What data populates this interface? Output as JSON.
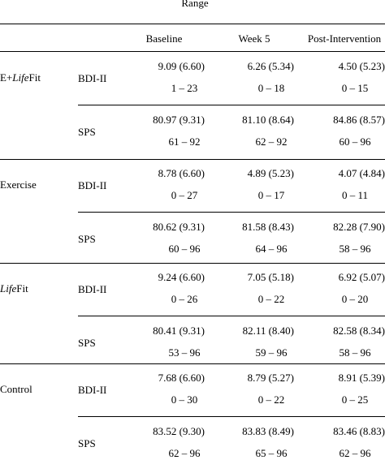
{
  "header": {
    "top": "Range",
    "columns": [
      "Baseline",
      "Week 5",
      "Post-Intervention"
    ]
  },
  "groups": [
    {
      "name_prefix": "E+",
      "name_italic": "Life",
      "name_suffix": "Fit",
      "rows": [
        {
          "measure": "BDI-II",
          "mean_sd": [
            "9.09 (6.60)",
            "6.26 (5.34)",
            "4.50 (5.23)"
          ],
          "range": [
            "1 – 23",
            "0 – 18",
            "0 – 15"
          ]
        },
        {
          "measure": "SPS",
          "mean_sd": [
            "80.97 (9.31)",
            "81.10 (8.64)",
            "84.86 (8.57)"
          ],
          "range": [
            "61 – 92",
            "62 – 92",
            "60 – 96"
          ]
        }
      ]
    },
    {
      "name_prefix": "Exercise",
      "name_italic": "",
      "name_suffix": "",
      "rows": [
        {
          "measure": "BDI-II",
          "mean_sd": [
            "8.78 (6.60)",
            "4.89 (5.23)",
            "4.07 (4.84)"
          ],
          "range": [
            "0 – 27",
            "0 – 17",
            "0 – 11"
          ]
        },
        {
          "measure": "SPS",
          "mean_sd": [
            "80.62 (9.31)",
            "81.58 (8.43)",
            "82.28 (7.90)"
          ],
          "range": [
            "60 – 96",
            "64 – 96",
            "58 – 96"
          ]
        }
      ]
    },
    {
      "name_prefix": "",
      "name_italic": "Life",
      "name_suffix": "Fit",
      "rows": [
        {
          "measure": "BDI-II",
          "mean_sd": [
            "9.24 (6.60)",
            "7.05 (5.18)",
            "6.92 (5.07)"
          ],
          "range": [
            "0 – 26",
            "0 – 22",
            "0 – 20"
          ]
        },
        {
          "measure": "SPS",
          "mean_sd": [
            "80.41 (9.31)",
            "82.11 (8.40)",
            "82.58 (8.34)"
          ],
          "range": [
            "53 – 96",
            "59 – 96",
            "58 – 96"
          ]
        }
      ]
    },
    {
      "name_prefix": "Control",
      "name_italic": "",
      "name_suffix": "",
      "rows": [
        {
          "measure": "BDI-II",
          "mean_sd": [
            "7.68 (6.60)",
            "8.79 (5.27)",
            "8.91 (5.39)"
          ],
          "range": [
            "0 – 30",
            "0 – 22",
            "0 – 25"
          ]
        },
        {
          "measure": "SPS",
          "mean_sd": [
            "83.52 (9.30)",
            "83.83 (8.49)",
            "83.46 (8.83)"
          ],
          "range": [
            "62 – 96",
            "65 – 96",
            "62 – 96"
          ]
        }
      ]
    }
  ]
}
